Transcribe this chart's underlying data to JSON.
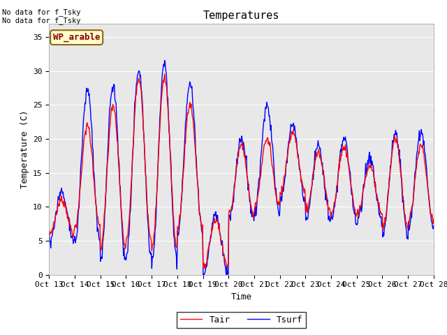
{
  "title": "Temperatures",
  "xlabel": "Time",
  "ylabel": "Temperature (C)",
  "ylim": [
    0,
    37
  ],
  "yticks": [
    0,
    5,
    10,
    15,
    20,
    25,
    30,
    35
  ],
  "x_labels": [
    "Oct 13",
    "Oct 14",
    "Oct 15",
    "Oct 16",
    "Oct 17",
    "Oct 18",
    "Oct 19",
    "Oct 20",
    "Oct 21",
    "Oct 22",
    "Oct 23",
    "Oct 24",
    "Oct 25",
    "Oct 26",
    "Oct 27",
    "Oct 28"
  ],
  "tair_color": "#ff0000",
  "tsurf_color": "#0000ff",
  "plot_bg_color": "#e8e8e8",
  "legend_entries": [
    "Tair",
    "Tsurf"
  ],
  "annotation_text": "No data for f_Tsky\nNo data for f_Tsky",
  "wp_label": "WP_arable",
  "title_fontsize": 11,
  "axis_fontsize": 9,
  "tick_fontsize": 8,
  "legend_fontsize": 9
}
